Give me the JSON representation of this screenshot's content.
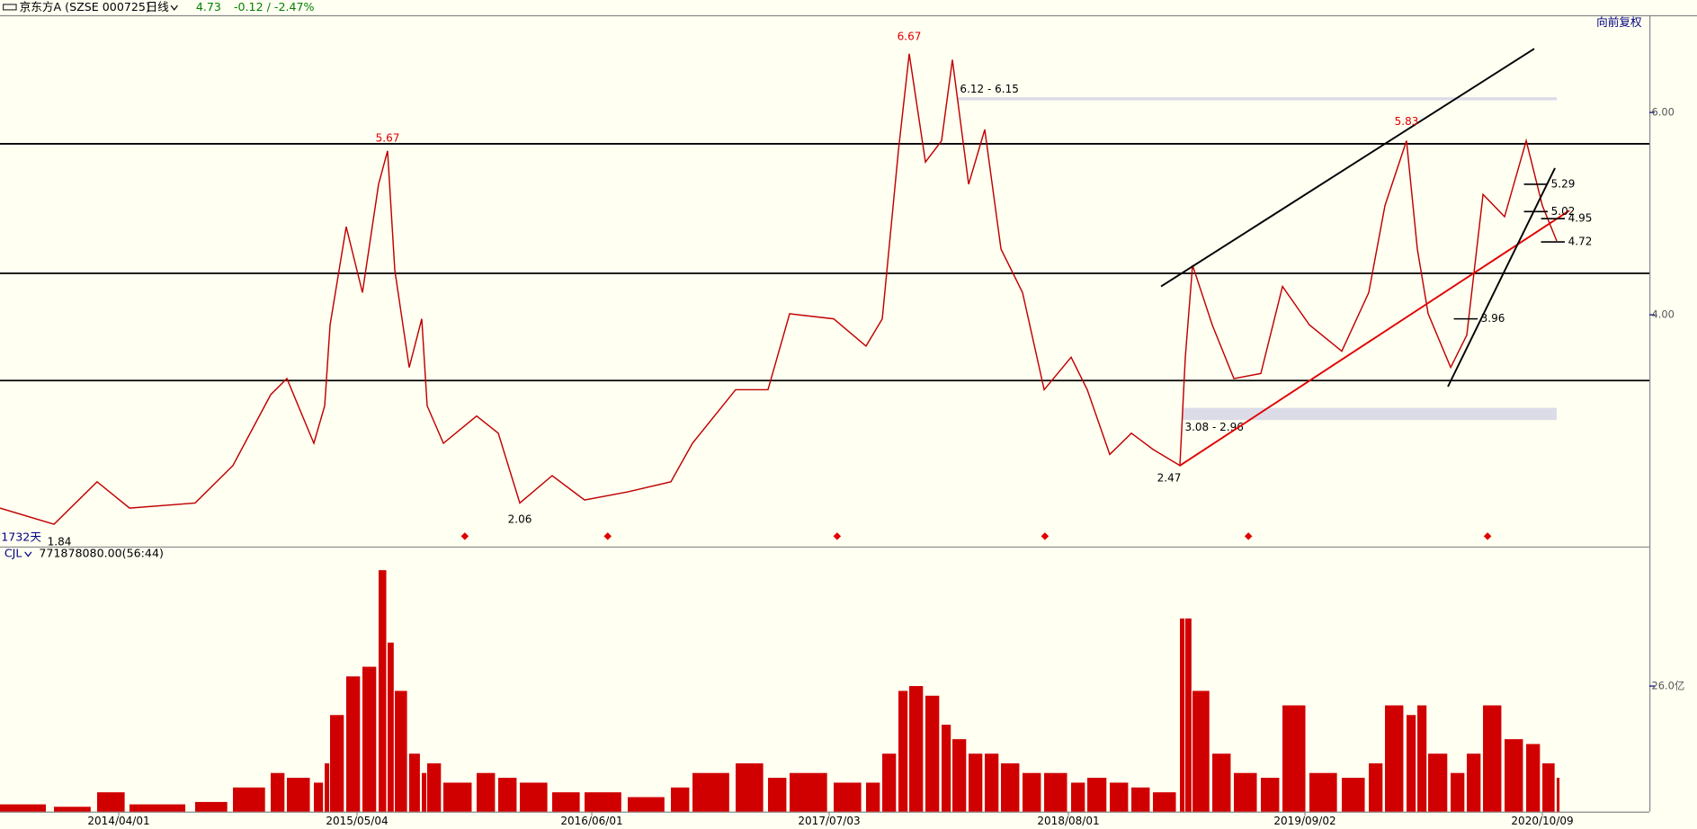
{
  "header": {
    "symbol": "京东方A (SZSE 000725)",
    "period": "日线",
    "price": "4.73",
    "change": "-0.12 / -2.47%",
    "adjust": "向前复权"
  },
  "chart_data": [
    {
      "type": "line",
      "days_label": "1732天",
      "color": "#c00000",
      "x": [
        0,
        60,
        108,
        144,
        217,
        259,
        301,
        319,
        349,
        361,
        367,
        385,
        403,
        421,
        431,
        439,
        455,
        469,
        475,
        493,
        530,
        554,
        578,
        614,
        650,
        698,
        746,
        770,
        818,
        854,
        878,
        927,
        963,
        981,
        999,
        1011,
        1029,
        1047,
        1059,
        1077,
        1095,
        1113,
        1137,
        1161,
        1191,
        1209,
        1234,
        1258,
        1282,
        1312,
        1318,
        1326,
        1348,
        1372,
        1402,
        1426,
        1456,
        1492,
        1522,
        1540,
        1564,
        1576,
        1588,
        1613,
        1631,
        1649,
        1673,
        1697,
        1715,
        1731
      ],
      "series": [
        {
          "name": "京东方A",
          "color": "#c00000",
          "values": [
            2.09,
            1.93,
            2.35,
            2.09,
            2.14,
            2.51,
            3.21,
            3.37,
            2.73,
            3.1,
            3.9,
            4.87,
            4.22,
            5.29,
            5.62,
            4.44,
            3.48,
            3.96,
            3.1,
            2.73,
            3.0,
            2.83,
            2.14,
            2.41,
            2.17,
            2.25,
            2.35,
            2.73,
            3.26,
            3.26,
            4.01,
            3.96,
            3.69,
            3.96,
            5.62,
            6.58,
            5.51,
            5.72,
            6.52,
            5.29,
            5.83,
            4.65,
            4.22,
            3.26,
            3.58,
            3.26,
            2.62,
            2.83,
            2.67,
            2.51,
            3.58,
            4.49,
            3.9,
            3.37,
            3.42,
            4.28,
            3.9,
            3.64,
            4.22,
            5.08,
            5.72,
            4.65,
            4.01,
            3.48,
            3.8,
            5.19,
            4.97,
            5.72,
            5.08,
            4.73
          ]
        }
      ],
      "xlim": [
        0,
        1834
      ],
      "ylim": [
        1.71,
        6.95
      ],
      "yticks": [
        {
          "value": 4,
          "label": "4.00"
        },
        {
          "value": 6,
          "label": "6.00"
        }
      ],
      "reference_lines": [
        5.69,
        4.41,
        3.35
      ],
      "trend_lines": [
        {
          "color": "#000000",
          "x": [
            1291,
            1706
          ],
          "y": [
            4.28,
            6.63
          ]
        },
        {
          "color": "#e00000",
          "x": [
            1312,
            1745
          ],
          "y": [
            2.51,
            5.03
          ]
        },
        {
          "color": "#000000",
          "x": [
            1610,
            1729
          ],
          "y": [
            3.29,
            5.45
          ]
        }
      ],
      "zones": [
        {
          "label": "6.12 - 6.15",
          "x": [
            1065,
            1731
          ],
          "range": [
            6.12,
            6.15
          ],
          "anchor": "top"
        },
        {
          "label": "3.08 - 2.96",
          "x": [
            1315,
            1731
          ],
          "range": [
            3.08,
            2.96
          ],
          "anchor": "bottom"
        }
      ],
      "annotations": [
        {
          "label": "5.67",
          "x": 431,
          "y": 5.67,
          "color": "#e00000",
          "anchor": "top"
        },
        {
          "label": "6.67",
          "x": 1011,
          "y": 6.67,
          "color": "#e00000",
          "anchor": "top"
        },
        {
          "label": "5.83",
          "x": 1564,
          "y": 5.83,
          "color": "#e00000",
          "anchor": "top"
        },
        {
          "label": "2.06",
          "x": 578,
          "y": 2.06,
          "color": "#000000",
          "anchor": "bottom"
        },
        {
          "label": "1.84",
          "x": 66,
          "y": 1.84,
          "color": "#000000",
          "anchor": "bottom"
        },
        {
          "label": "2.47",
          "x": 1300,
          "y": 2.47,
          "color": "#000000",
          "anchor": "bottom"
        },
        {
          "label": "5.29",
          "x": 1721,
          "y": 5.29,
          "color": "#000000",
          "anchor": "right"
        },
        {
          "label": "5.02",
          "x": 1721,
          "y": 5.02,
          "color": "#000000",
          "anchor": "right"
        },
        {
          "label": "4.95",
          "x": 1740,
          "y": 4.95,
          "color": "#000000",
          "anchor": "right"
        },
        {
          "label": "4.72",
          "x": 1740,
          "y": 4.72,
          "color": "#000000",
          "anchor": "right"
        },
        {
          "label": "3.96",
          "x": 1643,
          "y": 3.96,
          "color": "#000000",
          "anchor": "right"
        }
      ]
    },
    {
      "type": "bar",
      "indicator": "CJL",
      "indicator_value": "771878080.00(56:44)",
      "color": "#d00000",
      "x": [
        0,
        60,
        108,
        144,
        217,
        259,
        301,
        319,
        349,
        361,
        367,
        385,
        403,
        421,
        431,
        439,
        455,
        469,
        475,
        493,
        530,
        554,
        578,
        614,
        650,
        698,
        746,
        770,
        818,
        854,
        878,
        927,
        963,
        981,
        999,
        1011,
        1029,
        1047,
        1059,
        1077,
        1095,
        1113,
        1137,
        1161,
        1191,
        1209,
        1234,
        1258,
        1282,
        1312,
        1318,
        1326,
        1348,
        1372,
        1402,
        1426,
        1456,
        1492,
        1522,
        1540,
        1564,
        1576,
        1588,
        1613,
        1631,
        1649,
        1673,
        1697,
        1715,
        1731
      ],
      "values": [
        1.5,
        1,
        4,
        1.5,
        2,
        5,
        8,
        7,
        6,
        10,
        20,
        28,
        30,
        50,
        35,
        25,
        12,
        8,
        10,
        6,
        8,
        7,
        6,
        4,
        4,
        3,
        5,
        8,
        10,
        7,
        8,
        6,
        6,
        12,
        25,
        26,
        24,
        18,
        15,
        12,
        12,
        10,
        8,
        8,
        6,
        7,
        6,
        5,
        4,
        40,
        40,
        25,
        12,
        8,
        7,
        22,
        8,
        7,
        10,
        22,
        20,
        22,
        12,
        8,
        12,
        22,
        15,
        14,
        10,
        7
      ],
      "xlim": [
        0,
        1834
      ],
      "ylim": [
        0,
        54.9
      ],
      "yticks": [
        {
          "value": 26,
          "label": "26.0亿"
        }
      ],
      "xticks": [
        {
          "value": 132,
          "label": "2014/04/01"
        },
        {
          "value": 397,
          "label": "2015/05/04"
        },
        {
          "value": 658,
          "label": "2016/06/01"
        },
        {
          "value": 922,
          "label": "2017/07/03"
        },
        {
          "value": 1188,
          "label": "2018/08/01"
        },
        {
          "value": 1451,
          "label": "2019/09/02"
        },
        {
          "value": 1715,
          "label": "2020/10/09"
        }
      ]
    }
  ]
}
